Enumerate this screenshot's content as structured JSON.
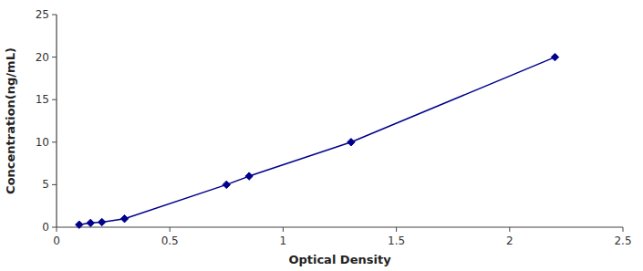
{
  "chart_data": {
    "type": "line",
    "x": [
      0.1,
      0.15,
      0.2,
      0.3,
      0.75,
      0.85,
      1.3,
      2.2
    ],
    "values": [
      0.3,
      0.5,
      0.6,
      1.0,
      5.0,
      6.0,
      10.0,
      20.0
    ],
    "color": "#00008B",
    "marker": "diamond",
    "xlabel": "Optical Density",
    "ylabel": "Concentration(ng/mL)",
    "xlim": [
      0,
      2.5
    ],
    "ylim": [
      0,
      25
    ],
    "xticks": [
      0,
      0.5,
      1,
      1.5,
      2,
      2.5
    ],
    "yticks": [
      0,
      5,
      10,
      15,
      20,
      25
    ],
    "grid": false
  }
}
